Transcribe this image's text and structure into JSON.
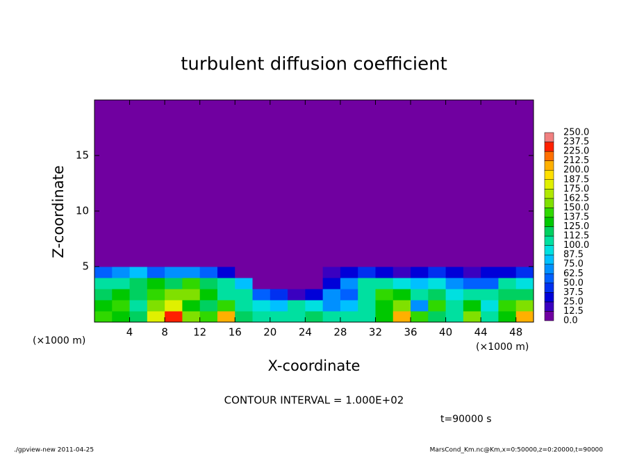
{
  "chart_data": {
    "type": "heatmap",
    "title": "turbulent diffusion coefficient",
    "x_label": "X-coordinate",
    "y_label": "Z-coordinate",
    "x_unit": "(×1000 m)",
    "contour_interval": "CONTOUR INTERVAL = 1.000E+02",
    "time_label": "t=90000 s",
    "footer_left": "./gpview-new   2011-04-25",
    "footer_right": "MarsCond_Km.nc@Km,x=0:50000,z=0:20000,t=90000",
    "xlim": [
      0,
      50
    ],
    "ylim": [
      0,
      20
    ],
    "xticks": [
      4,
      8,
      12,
      16,
      20,
      24,
      28,
      32,
      36,
      40,
      44,
      48
    ],
    "yticks": [
      5,
      10,
      15
    ],
    "x_edges": [
      0,
      2,
      4,
      6,
      8,
      10,
      12,
      14,
      16,
      18,
      20,
      22,
      24,
      26,
      28,
      30,
      32,
      34,
      36,
      38,
      40,
      42,
      44,
      46,
      48,
      50
    ],
    "y_edges": [
      0,
      1,
      2,
      3,
      4,
      5,
      20
    ],
    "values": [
      [
        140,
        130,
        120,
        180,
        230,
        150,
        140,
        200,
        120,
        110,
        100,
        110,
        120,
        100,
        100,
        110,
        130,
        210,
        140,
        120,
        100,
        160,
        100,
        130,
        210
      ],
      [
        130,
        140,
        110,
        160,
        180,
        130,
        120,
        140,
        100,
        90,
        80,
        110,
        90,
        70,
        80,
        100,
        130,
        150,
        70,
        140,
        110,
        130,
        90,
        140,
        160
      ],
      [
        120,
        130,
        120,
        140,
        150,
        150,
        130,
        110,
        100,
        60,
        40,
        20,
        30,
        70,
        60,
        100,
        140,
        130,
        110,
        120,
        90,
        100,
        100,
        120,
        120
      ],
      [
        100,
        110,
        120,
        130,
        120,
        140,
        120,
        100,
        80,
        10,
        0,
        0,
        0,
        30,
        70,
        110,
        110,
        90,
        80,
        90,
        70,
        60,
        60,
        100,
        90
      ],
      [
        60,
        70,
        80,
        60,
        70,
        70,
        60,
        30,
        10,
        0,
        0,
        0,
        0,
        20,
        30,
        40,
        30,
        20,
        30,
        40,
        30,
        20,
        30,
        30,
        40
      ],
      [
        0,
        0,
        0,
        0,
        0,
        0,
        0,
        0,
        0,
        0,
        0,
        0,
        0,
        0,
        0,
        0,
        0,
        0,
        0,
        0,
        0,
        0,
        0,
        0,
        0
      ]
    ],
    "colorbar": {
      "levels": [
        {
          "value": 0,
          "label": "0.0"
        },
        {
          "value": 12.5,
          "label": "12.5"
        },
        {
          "value": 25,
          "label": "25.0"
        },
        {
          "value": 37.5,
          "label": "37.5"
        },
        {
          "value": 50,
          "label": "50.0"
        },
        {
          "value": 62.5,
          "label": "62.5"
        },
        {
          "value": 75,
          "label": "75.0"
        },
        {
          "value": 87.5,
          "label": "87.5"
        },
        {
          "value": 100,
          "label": "100.0"
        },
        {
          "value": 112.5,
          "label": "112.5"
        },
        {
          "value": 125,
          "label": "125.0"
        },
        {
          "value": 137.5,
          "label": "137.5"
        },
        {
          "value": 150,
          "label": "150.0"
        },
        {
          "value": 162.5,
          "label": "162.5"
        },
        {
          "value": 175,
          "label": "175.0"
        },
        {
          "value": 187.5,
          "label": "187.5"
        },
        {
          "value": 200,
          "label": "200.0"
        },
        {
          "value": 212.5,
          "label": "212.5"
        },
        {
          "value": 225,
          "label": "225.0"
        },
        {
          "value": 237.5,
          "label": "237.5"
        },
        {
          "value": 250,
          "label": "250.0"
        }
      ],
      "colors": [
        "#7000a0",
        "#3a00c0",
        "#0000d8",
        "#0030f0",
        "#0060ff",
        "#0090ff",
        "#00c0ff",
        "#00e0e0",
        "#00e0a0",
        "#00d060",
        "#00c800",
        "#30d800",
        "#80e000",
        "#b0e800",
        "#e0f000",
        "#ffe000",
        "#ffb000",
        "#ff7000",
        "#ff2000",
        "#f08080"
      ]
    }
  }
}
